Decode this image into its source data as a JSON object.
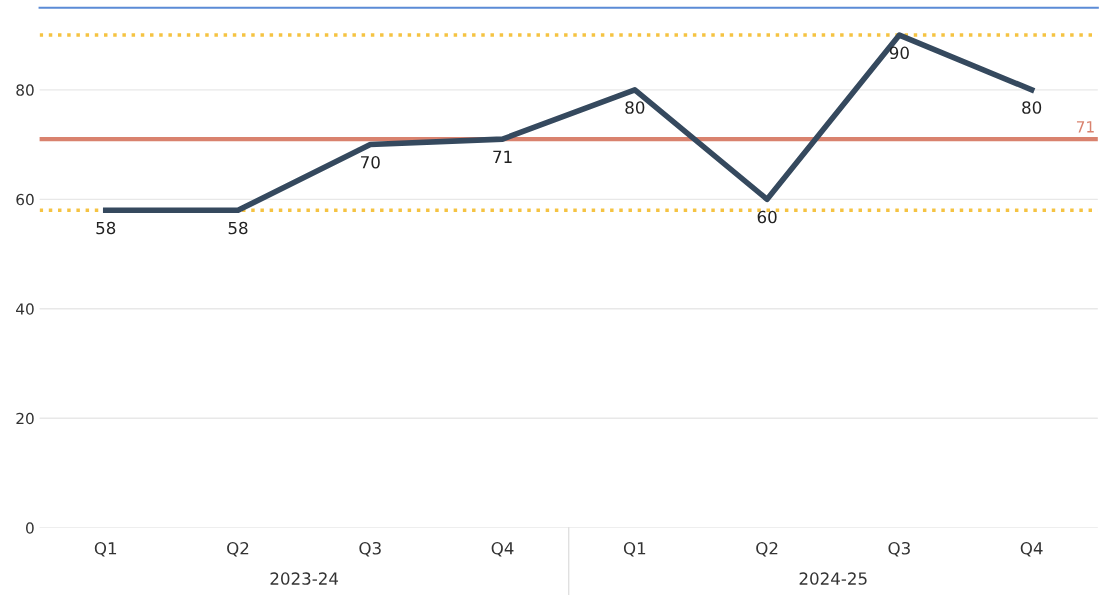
{
  "chart_data": {
    "type": "line",
    "categories": [
      "Q1",
      "Q2",
      "Q3",
      "Q4",
      "Q1",
      "Q2",
      "Q3",
      "Q4"
    ],
    "series": [
      {
        "color": "#35495e",
        "values": [
          58,
          58,
          70,
          71,
          80,
          60,
          90,
          80
        ]
      }
    ],
    "ylim": [
      0,
      95
    ],
    "yticks": [
      0,
      20,
      40,
      60,
      80
    ],
    "grid": "y",
    "data_labels": true,
    "marker": "none",
    "line_style": "solid",
    "ref_lines": [
      {
        "axis": "y",
        "value": 71,
        "label": "71",
        "color": "#d9826e",
        "line_style": "solid"
      },
      {
        "axis": "y",
        "value": 90,
        "label": null,
        "color": "#f5c342",
        "line_style": "dotted"
      },
      {
        "axis": "y",
        "value": 58,
        "label": null,
        "color": "#f5c342",
        "line_style": "dotted"
      }
    ],
    "annotations": [
      "2023-24",
      "2024-25"
    ]
  }
}
